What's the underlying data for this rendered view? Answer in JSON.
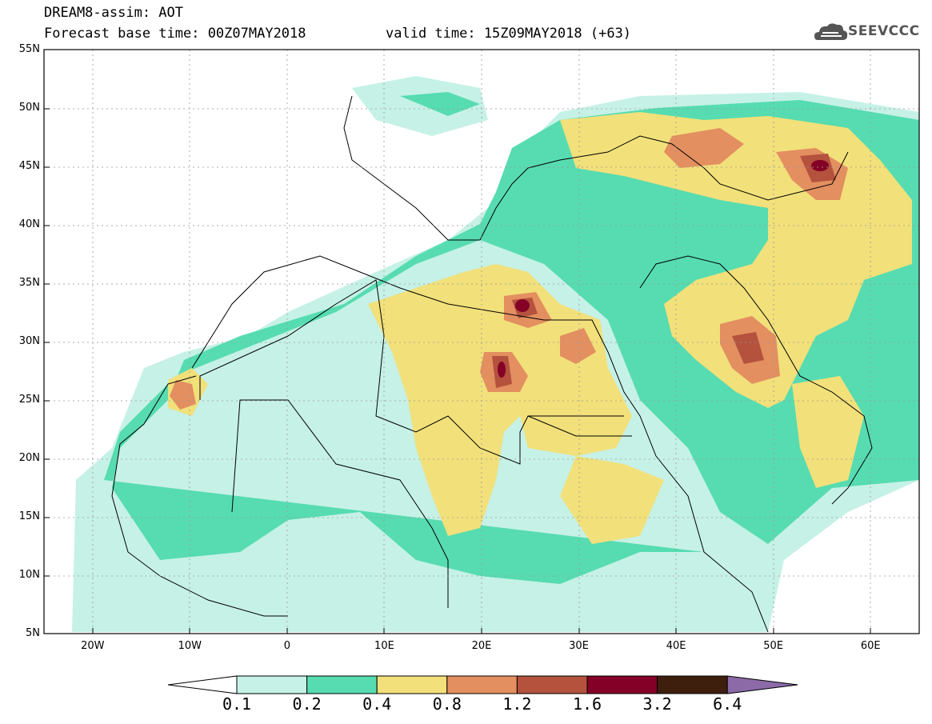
{
  "header": {
    "title": "DREAM8-assim: AOT",
    "base_time": "Forecast base time: 00Z07MAY2018",
    "valid_time": "valid time: 15Z09MAY2018 (+63)"
  },
  "logo": {
    "text": "SEEVCCC",
    "icon": "cloud-icon"
  },
  "map": {
    "lat_labels": [
      "55N",
      "50N",
      "45N",
      "40N",
      "35N",
      "30N",
      "25N",
      "20N",
      "15N",
      "10N",
      "5N"
    ],
    "lon_labels": [
      "20W",
      "10W",
      "0",
      "10E",
      "20E",
      "30E",
      "40E",
      "50E",
      "60E"
    ],
    "lat_range": [
      5,
      55
    ],
    "lon_range": [
      -25,
      65
    ]
  },
  "colorbar": {
    "levels": [
      "0.1",
      "0.2",
      "0.4",
      "0.8",
      "1.2",
      "1.6",
      "3.2",
      "6.4"
    ],
    "colors": [
      "#c6f1e6",
      "#56dcb0",
      "#f2e07a",
      "#e38f60",
      "#b4523e",
      "#840026",
      "#3e1f0d",
      "#8c6aa8"
    ]
  }
}
